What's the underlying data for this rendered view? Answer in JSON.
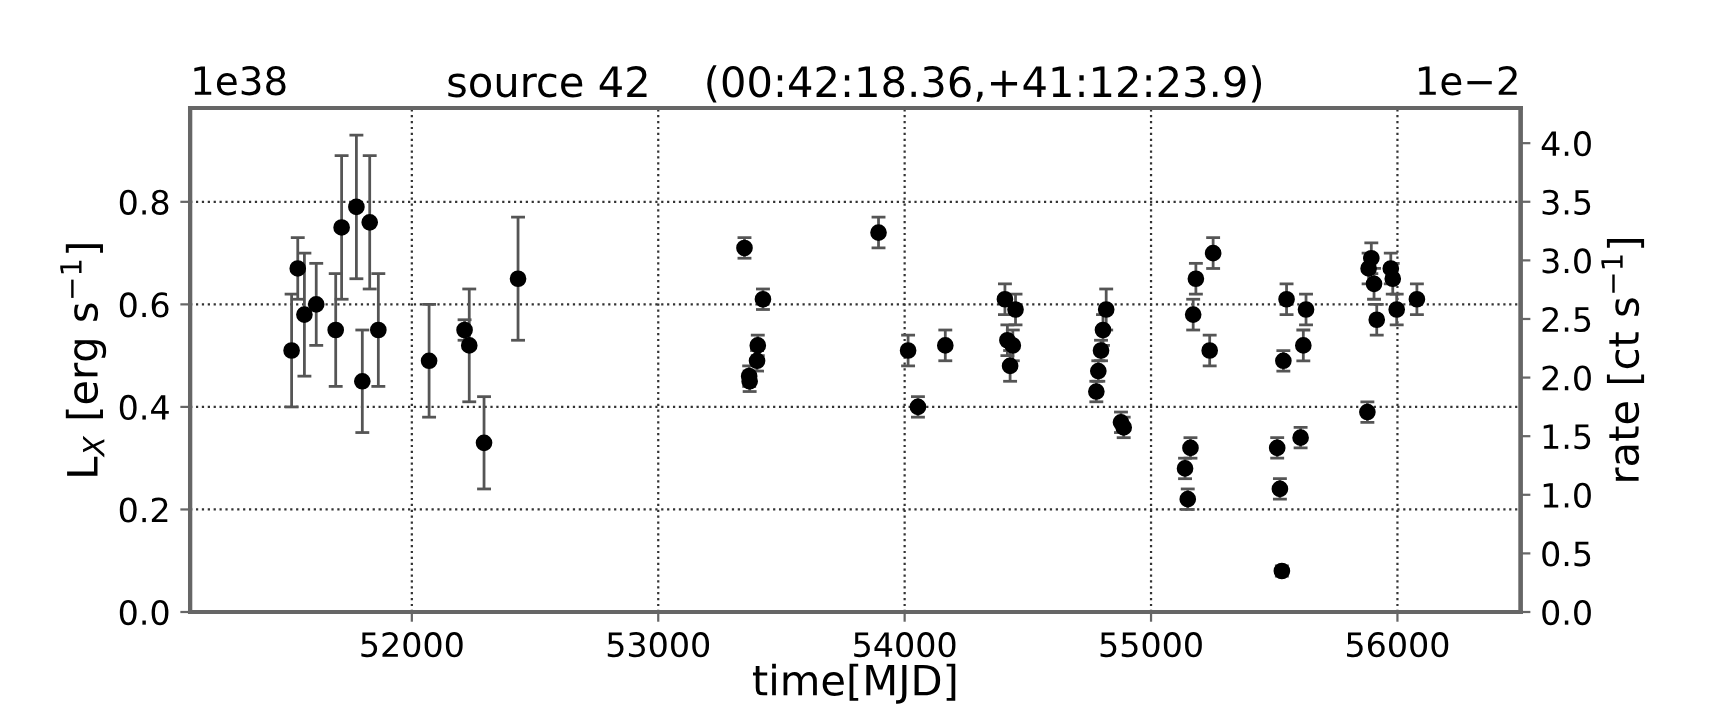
{
  "chart_data": {
    "type": "scatter",
    "title": "source 42    (00:42:18.36,+41:12:23.9)",
    "xlabel": "time[MJD]",
    "ylabel": "L$_{X}$ [erg s$^{−1}$]",
    "y2label": "rate [ct s$^{−1}$]",
    "annotations": [
      "1e38",
      "1e−2"
    ],
    "x": [
      51512,
      51537,
      51564,
      51612,
      51691,
      51715,
      51775,
      51799,
      51829,
      51864,
      52070,
      52214,
      52233,
      52293,
      52431,
      53350,
      53369,
      53371,
      53401,
      53404,
      53425,
      53894,
      54014,
      54054,
      54165,
      54407,
      54417,
      54428,
      54439,
      54450,
      54778,
      54786,
      54797,
      54805,
      54818,
      54878,
      54889,
      55138,
      55149,
      55160,
      55171,
      55182,
      55238,
      55252,
      55512,
      55523,
      55531,
      55537,
      55550,
      55607,
      55618,
      55629,
      55878,
      55883,
      55894,
      55905,
      55916,
      55973,
      55981,
      55997,
      56079
    ],
    "series": [
      {
        "color": "#000000",
        "values": [
          0.51,
          0.67,
          0.58,
          0.6,
          0.55,
          0.75,
          0.79,
          0.45,
          0.76,
          0.55,
          0.49,
          0.55,
          0.52,
          0.33,
          0.65,
          0.71,
          0.46,
          0.45,
          0.49,
          0.52,
          0.61,
          0.74,
          0.51,
          0.4,
          0.52,
          0.61,
          0.53,
          0.48,
          0.52,
          0.59,
          0.43,
          0.47,
          0.51,
          0.55,
          0.59,
          0.37,
          0.36,
          0.28,
          0.22,
          0.32,
          0.58,
          0.65,
          0.51,
          0.7,
          0.32,
          0.24,
          0.08,
          0.49,
          0.61,
          0.34,
          0.52,
          0.59,
          0.39,
          0.67,
          0.69,
          0.64,
          0.57,
          0.67,
          0.65,
          0.59,
          0.61
        ],
        "errors": [
          0.11,
          0.06,
          0.12,
          0.08,
          0.11,
          0.14,
          0.14,
          0.1,
          0.13,
          0.11,
          0.11,
          0.02,
          0.11,
          0.09,
          0.12,
          0.02,
          0.02,
          0.02,
          0.02,
          0.02,
          0.02,
          0.03,
          0.03,
          0.02,
          0.03,
          0.03,
          0.03,
          0.03,
          0.03,
          0.03,
          0.02,
          0.02,
          0.02,
          0.03,
          0.04,
          0.02,
          0.02,
          0.02,
          0.02,
          0.02,
          0.03,
          0.03,
          0.03,
          0.03,
          0.02,
          0.02,
          0.01,
          0.02,
          0.03,
          0.02,
          0.03,
          0.03,
          0.02,
          0.03,
          0.03,
          0.03,
          0.03,
          0.03,
          0.03,
          0.03,
          0.03
        ]
      }
    ],
    "marker": "circle",
    "grid": true,
    "xlim": [
      51100,
      56500
    ],
    "xticks": [
      52000,
      53000,
      54000,
      55000,
      56000
    ],
    "ylim": [
      0,
      0.983
    ],
    "yticks": [
      {
        "value": 0,
        "label": "0.0"
      },
      {
        "value": 0.2,
        "label": "0.2"
      },
      {
        "value": 0.4,
        "label": "0.4"
      },
      {
        "value": 0.6,
        "label": "0.6"
      },
      {
        "value": 0.8,
        "label": "0.8"
      }
    ],
    "y2lim": [
      0,
      4.3
    ],
    "y2ticks": [
      {
        "value": 0,
        "label": "0.0"
      },
      {
        "value": 0.5,
        "label": "0.5"
      },
      {
        "value": 1,
        "label": "1.0"
      },
      {
        "value": 1.5,
        "label": "1.5"
      },
      {
        "value": 2,
        "label": "2.0"
      },
      {
        "value": 2.5,
        "label": "2.5"
      },
      {
        "value": 3,
        "label": "3.0"
      },
      {
        "value": 3.5,
        "label": "3.5"
      },
      {
        "value": 4,
        "label": "4.0"
      }
    ]
  }
}
